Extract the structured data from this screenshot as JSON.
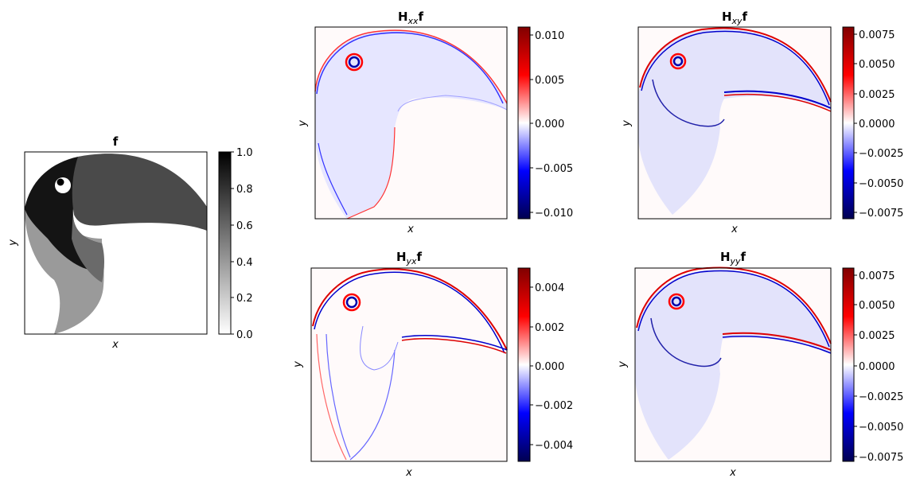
{
  "panels": [
    {
      "id": "f",
      "title_main": "f",
      "title_sub": "",
      "title_tail": "",
      "xlabel": "x",
      "ylabel": "y",
      "colormap": "gray_r",
      "colorbar_ticks": [
        "0.0",
        "0.2",
        "0.4",
        "0.6",
        "0.8",
        "1.0"
      ],
      "colorbar_range": [
        0.0,
        1.0
      ]
    },
    {
      "id": "hxx",
      "title_main": "H",
      "title_sub": "xx",
      "title_tail": "f",
      "xlabel": "x",
      "ylabel": "y",
      "colormap": "seismic",
      "colorbar_ticks": [
        "0.010",
        "0.005",
        "0.000",
        "−0.005",
        "−0.010"
      ],
      "colorbar_range": [
        -0.011,
        0.011
      ]
    },
    {
      "id": "hxy",
      "title_main": "H",
      "title_sub": "xy",
      "title_tail": "f",
      "xlabel": "x",
      "ylabel": "y",
      "colormap": "seismic",
      "colorbar_ticks": [
        "0.0075",
        "0.0050",
        "0.0025",
        "0.0000",
        "−0.0025",
        "−0.0050",
        "−0.0075"
      ],
      "colorbar_range": [
        -0.0081,
        0.0081
      ]
    },
    {
      "id": "hyx",
      "title_main": "H",
      "title_sub": "yx",
      "title_tail": "f",
      "xlabel": "x",
      "ylabel": "y",
      "colormap": "seismic",
      "colorbar_ticks": [
        "0.004",
        "0.002",
        "0.000",
        "−0.002",
        "−0.004"
      ],
      "colorbar_range": [
        -0.005,
        0.005
      ]
    },
    {
      "id": "hyy",
      "title_main": "H",
      "title_sub": "yy",
      "title_tail": "f",
      "xlabel": "x",
      "ylabel": "y",
      "colormap": "seismic",
      "colorbar_ticks": [
        "0.0075",
        "0.0050",
        "0.0025",
        "0.0000",
        "−0.0025",
        "−0.0050",
        "−0.0075"
      ],
      "colorbar_range": [
        -0.0081,
        0.0081
      ]
    }
  ]
}
